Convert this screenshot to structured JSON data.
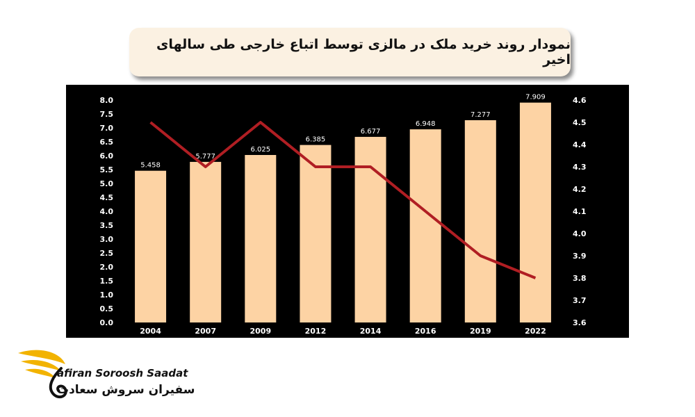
{
  "title": "نمودار روند خرید ملک در مالزی توسط اتباع خارجی طی سالهای اخیر",
  "brand": {
    "name_en": "afiran Soroosh Saadat",
    "name_fa": "سفیران سروش سعادت",
    "accent": "#f2b300"
  },
  "chart_data": {
    "type": "bar",
    "categories": [
      "2004",
      "2007",
      "2009",
      "2012",
      "2014",
      "2016",
      "2019",
      "2022"
    ],
    "series": [
      {
        "type": "bar",
        "axis": "left",
        "color": "#fdd3a4",
        "values": [
          5.458,
          5.777,
          6.025,
          6.385,
          6.677,
          6.948,
          7.277,
          7.909
        ],
        "labels": [
          "5.458",
          "5.777",
          "6.025",
          "6.385",
          "6.677",
          "6.948",
          "7.277",
          "7.909"
        ]
      },
      {
        "type": "line",
        "axis": "right",
        "color": "#b01e23",
        "values": [
          4.5,
          4.3,
          4.5,
          4.3,
          4.3,
          4.1,
          3.9,
          3.8
        ]
      }
    ],
    "y_left": {
      "min": 0,
      "max": 8,
      "step": 0.5,
      "ticks": [
        "0.0",
        "0.5",
        "1.0",
        "1.5",
        "2.0",
        "2.5",
        "3.0",
        "3.5",
        "4.0",
        "4.5",
        "5.0",
        "5.5",
        "6.0",
        "6.5",
        "7.0",
        "7.5",
        "8.0"
      ]
    },
    "y_right": {
      "min": 3.6,
      "max": 4.6,
      "step": 0.1,
      "ticks": [
        "3.6",
        "3.7",
        "3.8",
        "3.9",
        "4.0",
        "4.1",
        "4.2",
        "4.3",
        "4.4",
        "4.5",
        "4.6"
      ]
    },
    "background": "#000000",
    "text_color": "#ffffff",
    "grid": false,
    "legend": "none"
  }
}
